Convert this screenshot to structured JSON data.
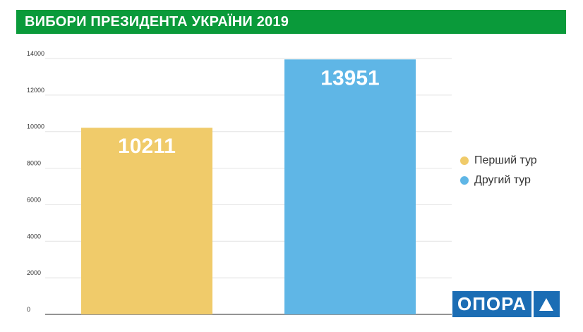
{
  "header": {
    "title": "ВИБОРИ ПРЕЗИДЕНТА УКРАЇНИ 2019"
  },
  "chart_data": {
    "type": "bar",
    "categories": [
      "Перший тур",
      "Другий тур"
    ],
    "values": [
      10211,
      13951
    ],
    "colors": [
      "#f0cb6a",
      "#5fb6e6"
    ],
    "data_labels": [
      "10211",
      "13951"
    ],
    "yticks": [
      0,
      2000,
      4000,
      6000,
      8000,
      10000,
      12000,
      14000
    ],
    "ylim": [
      0,
      14000
    ],
    "grid": true,
    "legend": "right",
    "title": "",
    "xlabel": "",
    "ylabel": ""
  },
  "legend": {
    "items": [
      {
        "label": "Перший тур",
        "color": "#f0cb6a"
      },
      {
        "label": "Другий тур",
        "color": "#5fb6e6"
      }
    ]
  },
  "logo": {
    "text": "ОПОРА",
    "mark_icon": "triangle-icon",
    "color": "#1b6db4"
  }
}
